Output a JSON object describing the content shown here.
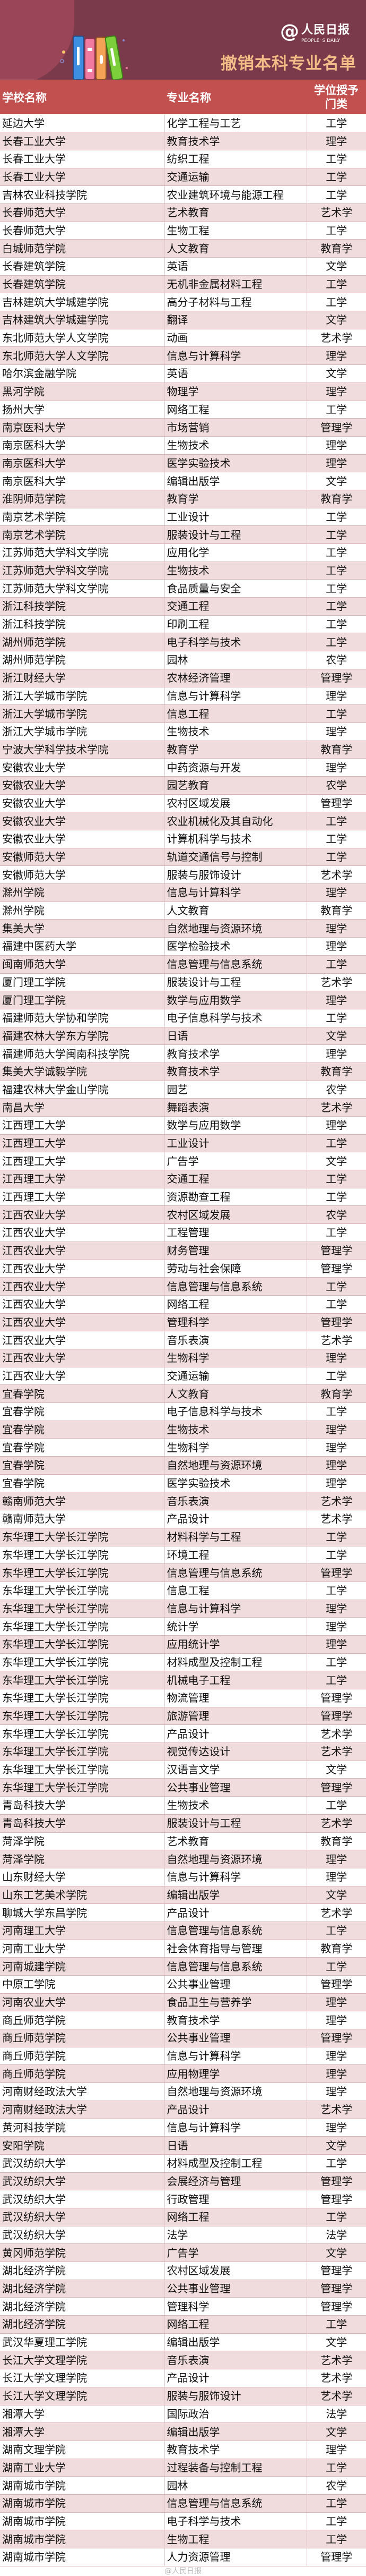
{
  "header": {
    "title": "撤销本科专业名单",
    "logo_cn": "人民日报",
    "logo_en": "PEOPLE' S DAILY",
    "logo_at": "@"
  },
  "table": {
    "columns": [
      "学校名称",
      "专业名称",
      "学位授予门类"
    ],
    "column3_lines": [
      "学位授予",
      "门类"
    ],
    "rows": [
      [
        "延边大学",
        "化学工程与工艺",
        "工学"
      ],
      [
        "长春工业大学",
        "教育技术学",
        "理学"
      ],
      [
        "长春工业大学",
        "纺织工程",
        "工学"
      ],
      [
        "长春工业大学",
        "交通运输",
        "工学"
      ],
      [
        "吉林农业科技学院",
        "农业建筑环境与能源工程",
        "工学"
      ],
      [
        "长春师范大学",
        "艺术教育",
        "艺术学"
      ],
      [
        "长春师范大学",
        "生物工程",
        "工学"
      ],
      [
        "白城师范学院",
        "人文教育",
        "教育学"
      ],
      [
        "长春建筑学院",
        "英语",
        "文学"
      ],
      [
        "长春建筑学院",
        "无机非金属材料工程",
        "工学"
      ],
      [
        "吉林建筑大学城建学院",
        "高分子材料与工程",
        "工学"
      ],
      [
        "吉林建筑大学城建学院",
        "翻译",
        "文学"
      ],
      [
        "东北师范大学人文学院",
        "动画",
        "艺术学"
      ],
      [
        "东北师范大学人文学院",
        "信息与计算科学",
        "理学"
      ],
      [
        "哈尔滨金融学院",
        "英语",
        "文学"
      ],
      [
        "黑河学院",
        "物理学",
        "理学"
      ],
      [
        "扬州大学",
        "网络工程",
        "工学"
      ],
      [
        "南京医科大学",
        "市场营销",
        "管理学"
      ],
      [
        "南京医科大学",
        "生物技术",
        "理学"
      ],
      [
        "南京医科大学",
        "医学实验技术",
        "理学"
      ],
      [
        "南京医科大学",
        "编辑出版学",
        "文学"
      ],
      [
        "淮阴师范学院",
        "教育学",
        "教育学"
      ],
      [
        "南京艺术学院",
        "工业设计",
        "工学"
      ],
      [
        "南京艺术学院",
        "服装设计与工程",
        "工学"
      ],
      [
        "江苏师范大学科文学院",
        "应用化学",
        "工学"
      ],
      [
        "江苏师范大学科文学院",
        "生物技术",
        "工学"
      ],
      [
        "江苏师范大学科文学院",
        "食品质量与安全",
        "工学"
      ],
      [
        "浙江科技学院",
        "交通工程",
        "工学"
      ],
      [
        "浙江科技学院",
        "印刷工程",
        "工学"
      ],
      [
        "湖州师范学院",
        "电子科学与技术",
        "工学"
      ],
      [
        "湖州师范学院",
        "园林",
        "农学"
      ],
      [
        "浙江财经大学",
        "农林经济管理",
        "管理学"
      ],
      [
        "浙江大学城市学院",
        "信息与计算科学",
        "理学"
      ],
      [
        "浙江大学城市学院",
        "信息工程",
        "工学"
      ],
      [
        "浙江大学城市学院",
        "生物技术",
        "理学"
      ],
      [
        "宁波大学科学技术学院",
        "教育学",
        "教育学"
      ],
      [
        "安徽农业大学",
        "中药资源与开发",
        "理学"
      ],
      [
        "安徽农业大学",
        "园艺教育",
        "农学"
      ],
      [
        "安徽农业大学",
        "农村区域发展",
        "管理学"
      ],
      [
        "安徽农业大学",
        "农业机械化及其自动化",
        "工学"
      ],
      [
        "安徽农业大学",
        "计算机科学与技术",
        "工学"
      ],
      [
        "安徽师范大学",
        "轨道交通信号与控制",
        "工学"
      ],
      [
        "安徽师范大学",
        "服装与服饰设计",
        "艺术学"
      ],
      [
        "滁州学院",
        "信息与计算科学",
        "理学"
      ],
      [
        "滁州学院",
        "人文教育",
        "教育学"
      ],
      [
        "集美大学",
        "自然地理与资源环境",
        "理学"
      ],
      [
        "福建中医药大学",
        "医学检验技术",
        "理学"
      ],
      [
        "闽南师范大学",
        "信息管理与信息系统",
        "工学"
      ],
      [
        "厦门理工学院",
        "服装设计与工程",
        "艺术学"
      ],
      [
        "厦门理工学院",
        "数学与应用数学",
        "理学"
      ],
      [
        "福建师范大学协和学院",
        "电子信息科学与技术",
        "工学"
      ],
      [
        "福建农林大学东方学院",
        "日语",
        "文学"
      ],
      [
        "福建师范大学闽南科技学院",
        "教育技术学",
        "理学"
      ],
      [
        "集美大学诚毅学院",
        "教育技术学",
        "教育学"
      ],
      [
        "福建农林大学金山学院",
        "园艺",
        "农学"
      ],
      [
        "南昌大学",
        "舞蹈表演",
        "艺术学"
      ],
      [
        "江西理工大学",
        "数学与应用数学",
        "理学"
      ],
      [
        "江西理工大学",
        "工业设计",
        "工学"
      ],
      [
        "江西理工大学",
        "广告学",
        "文学"
      ],
      [
        "江西理工大学",
        "交通工程",
        "工学"
      ],
      [
        "江西理工大学",
        "资源勘查工程",
        "工学"
      ],
      [
        "江西农业大学",
        "农村区域发展",
        "农学"
      ],
      [
        "江西农业大学",
        "工程管理",
        "工学"
      ],
      [
        "江西农业大学",
        "财务管理",
        "管理学"
      ],
      [
        "江西农业大学",
        "劳动与社会保障",
        "管理学"
      ],
      [
        "江西农业大学",
        "信息管理与信息系统",
        "工学"
      ],
      [
        "江西农业大学",
        "网络工程",
        "工学"
      ],
      [
        "江西农业大学",
        "管理科学",
        "管理学"
      ],
      [
        "江西农业大学",
        "音乐表演",
        "艺术学"
      ],
      [
        "江西农业大学",
        "生物科学",
        "理学"
      ],
      [
        "江西农业大学",
        "交通运输",
        "工学"
      ],
      [
        "宜春学院",
        "人文教育",
        "教育学"
      ],
      [
        "宜春学院",
        "电子信息科学与技术",
        "工学"
      ],
      [
        "宜春学院",
        "生物技术",
        "理学"
      ],
      [
        "宜春学院",
        "生物科学",
        "理学"
      ],
      [
        "宜春学院",
        "自然地理与资源环境",
        "理学"
      ],
      [
        "宜春学院",
        "医学实验技术",
        "理学"
      ],
      [
        "赣南师范大学",
        "音乐表演",
        "艺术学"
      ],
      [
        "赣南师范大学",
        "产品设计",
        "艺术学"
      ],
      [
        "东华理工大学长江学院",
        "材料科学与工程",
        "工学"
      ],
      [
        "东华理工大学长江学院",
        "环境工程",
        "工学"
      ],
      [
        "东华理工大学长江学院",
        "信息管理与信息系统",
        "管理学"
      ],
      [
        "东华理工大学长江学院",
        "信息工程",
        "工学"
      ],
      [
        "东华理工大学长江学院",
        "信息与计算科学",
        "理学"
      ],
      [
        "东华理工大学长江学院",
        "统计学",
        "理学"
      ],
      [
        "东华理工大学长江学院",
        "应用统计学",
        "理学"
      ],
      [
        "东华理工大学长江学院",
        "材料成型及控制工程",
        "工学"
      ],
      [
        "东华理工大学长江学院",
        "机械电子工程",
        "工学"
      ],
      [
        "东华理工大学长江学院",
        "物流管理",
        "管理学"
      ],
      [
        "东华理工大学长江学院",
        "旅游管理",
        "管理学"
      ],
      [
        "东华理工大学长江学院",
        "产品设计",
        "艺术学"
      ],
      [
        "东华理工大学长江学院",
        "视觉传达设计",
        "艺术学"
      ],
      [
        "东华理工大学长江学院",
        "汉语言文学",
        "文学"
      ],
      [
        "东华理工大学长江学院",
        "公共事业管理",
        "管理学"
      ],
      [
        "青岛科技大学",
        "生物技术",
        "工学"
      ],
      [
        "青岛科技大学",
        "服装设计与工程",
        "艺术学"
      ],
      [
        "菏泽学院",
        "艺术教育",
        "教育学"
      ],
      [
        "菏泽学院",
        "自然地理与资源环境",
        "理学"
      ],
      [
        "山东财经大学",
        "信息与计算科学",
        "理学"
      ],
      [
        "山东工艺美术学院",
        "编辑出版学",
        "文学"
      ],
      [
        "聊城大学东昌学院",
        "产品设计",
        "艺术学"
      ],
      [
        "河南理工大学",
        "信息管理与信息系统",
        "工学"
      ],
      [
        "河南工业大学",
        "社会体育指导与管理",
        "教育学"
      ],
      [
        "河南城建学院",
        "信息管理与信息系统",
        "工学"
      ],
      [
        "中原工学院",
        "公共事业管理",
        "管理学"
      ],
      [
        "河南农业大学",
        "食品卫生与营养学",
        "理学"
      ],
      [
        "商丘师范学院",
        "教育技术学",
        "理学"
      ],
      [
        "商丘师范学院",
        "公共事业管理",
        "管理学"
      ],
      [
        "商丘师范学院",
        "信息与计算科学",
        "理学"
      ],
      [
        "商丘师范学院",
        "应用物理学",
        "理学"
      ],
      [
        "河南财经政法大学",
        "自然地理与资源环境",
        "理学"
      ],
      [
        "河南财经政法大学",
        "产品设计",
        "艺术学"
      ],
      [
        "黄河科技学院",
        "信息与计算科学",
        "理学"
      ],
      [
        "安阳学院",
        "日语",
        "文学"
      ],
      [
        "武汉纺织大学",
        "材料成型及控制工程",
        "工学"
      ],
      [
        "武汉纺织大学",
        "会展经济与管理",
        "管理学"
      ],
      [
        "武汉纺织大学",
        "行政管理",
        "管理学"
      ],
      [
        "武汉纺织大学",
        "网络工程",
        "工学"
      ],
      [
        "武汉纺织大学",
        "法学",
        "法学"
      ],
      [
        "黄冈师范学院",
        "广告学",
        "文学"
      ],
      [
        "湖北经济学院",
        "农村区域发展",
        "管理学"
      ],
      [
        "湖北经济学院",
        "公共事业管理",
        "管理学"
      ],
      [
        "湖北经济学院",
        "管理科学",
        "管理学"
      ],
      [
        "湖北经济学院",
        "网络工程",
        "工学"
      ],
      [
        "武汉华夏理工学院",
        "编辑出版学",
        "文学"
      ],
      [
        "长江大学文理学院",
        "音乐表演",
        "艺术学"
      ],
      [
        "长江大学文理学院",
        "产品设计",
        "艺术学"
      ],
      [
        "长江大学文理学院",
        "服装与服饰设计",
        "艺术学"
      ],
      [
        "湘潭大学",
        "国际政治",
        "法学"
      ],
      [
        "湘潭大学",
        "编辑出版学",
        "文学"
      ],
      [
        "湖南文理学院",
        "教育技术学",
        "理学"
      ],
      [
        "湖南工业大学",
        "过程装备与控制工程",
        "工学"
      ],
      [
        "湖南城市学院",
        "园林",
        "农学"
      ],
      [
        "湖南城市学院",
        "信息管理与信息系统",
        "工学"
      ],
      [
        "湖南城市学院",
        "电子科学与技术",
        "工学"
      ],
      [
        "湖南城市学院",
        "生物工程",
        "工学"
      ],
      [
        "湖南城市学院",
        "人力资源管理",
        "管理学"
      ]
    ]
  },
  "watermark": "@人民日报",
  "colors": {
    "banner": "#7b3a4b",
    "header_row": "#c1504f",
    "stripe": "#f1dcdd",
    "title": "#f3bd88"
  }
}
